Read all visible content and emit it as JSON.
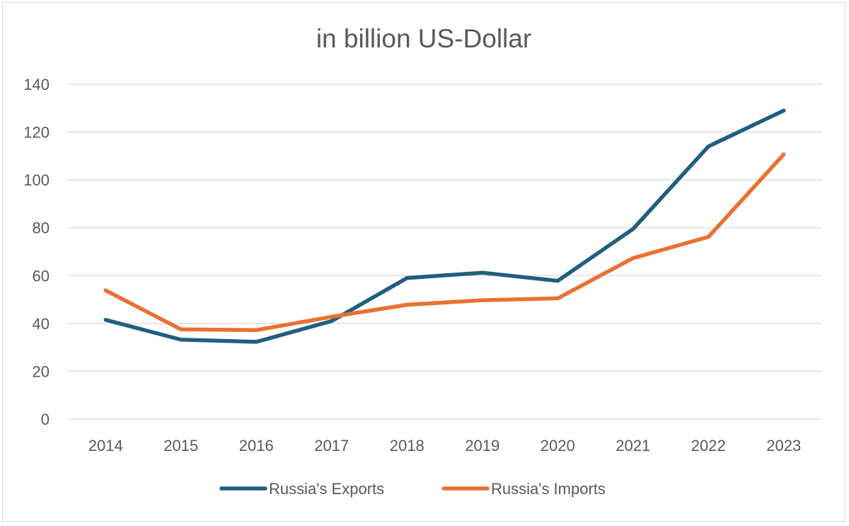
{
  "chart_data": {
    "type": "line",
    "title": "in billion US-Dollar",
    "xlabel": "",
    "ylabel": "",
    "categories": [
      "2014",
      "2015",
      "2016",
      "2017",
      "2018",
      "2019",
      "2020",
      "2021",
      "2022",
      "2023"
    ],
    "series": [
      {
        "name": "Russia's Exports",
        "color": "#1f5f7f",
        "values": [
          41.5,
          33.2,
          32.3,
          41.0,
          59.0,
          61.2,
          57.8,
          79.5,
          114.0,
          129.0
        ]
      },
      {
        "name": "Russia's Imports",
        "color": "#e97132",
        "values": [
          53.8,
          37.5,
          37.2,
          42.8,
          47.8,
          49.7,
          50.5,
          67.3,
          76.2,
          110.7
        ]
      }
    ],
    "ylim": [
      0,
      140
    ],
    "yticks": [
      "0",
      "20",
      "40",
      "60",
      "80",
      "100",
      "120",
      "140"
    ],
    "grid": true,
    "legend_position": "bottom"
  }
}
